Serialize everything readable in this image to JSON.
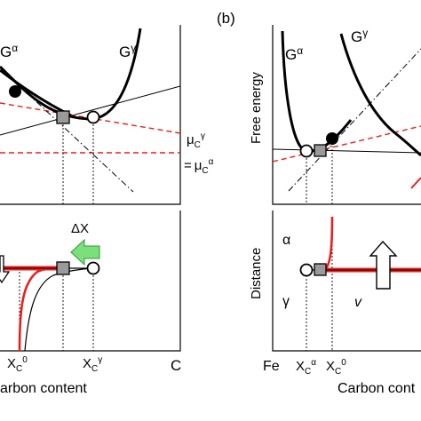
{
  "left": {
    "top_labels": {
      "g_alpha": {
        "base": "G",
        "sup": "α"
      },
      "g_gamma": {
        "base": "G",
        "sup": "γ"
      }
    },
    "mu": {
      "line1": {
        "base": "μ",
        "sub": "C",
        "sup": "γ"
      },
      "line2": {
        "eq": "=",
        "base": "μ",
        "sub": "C",
        "sup": "α"
      }
    },
    "delta_x": "ΔX",
    "x_ticks": [
      {
        "base": "X",
        "sub": "C",
        "sup": "0"
      },
      {
        "base": "X",
        "sub": "C",
        "sup": "γ"
      }
    ],
    "c_tick": "C",
    "xlabel": "arbon content"
  },
  "right": {
    "panel_label": "(b)",
    "top_labels": {
      "g_alpha": {
        "base": "G",
        "sup": "α"
      },
      "g_gamma": {
        "base": "G",
        "sup": "γ"
      }
    },
    "ylabel_top": "Free energy",
    "ylabel_bottom": "Distance",
    "phase_alpha": "α",
    "phase_gamma": "γ",
    "v_label": "v",
    "x_ticks": [
      {
        "base": "Fe"
      },
      {
        "base": "X",
        "sub": "C",
        "sup": "α"
      },
      {
        "base": "X",
        "sub": "C",
        "sup": "0"
      }
    ],
    "xlabel": "Carbon cont"
  },
  "colors": {
    "red": "#e8201c",
    "green": "#7be07b",
    "marker_gray": "#9a9a9a"
  }
}
